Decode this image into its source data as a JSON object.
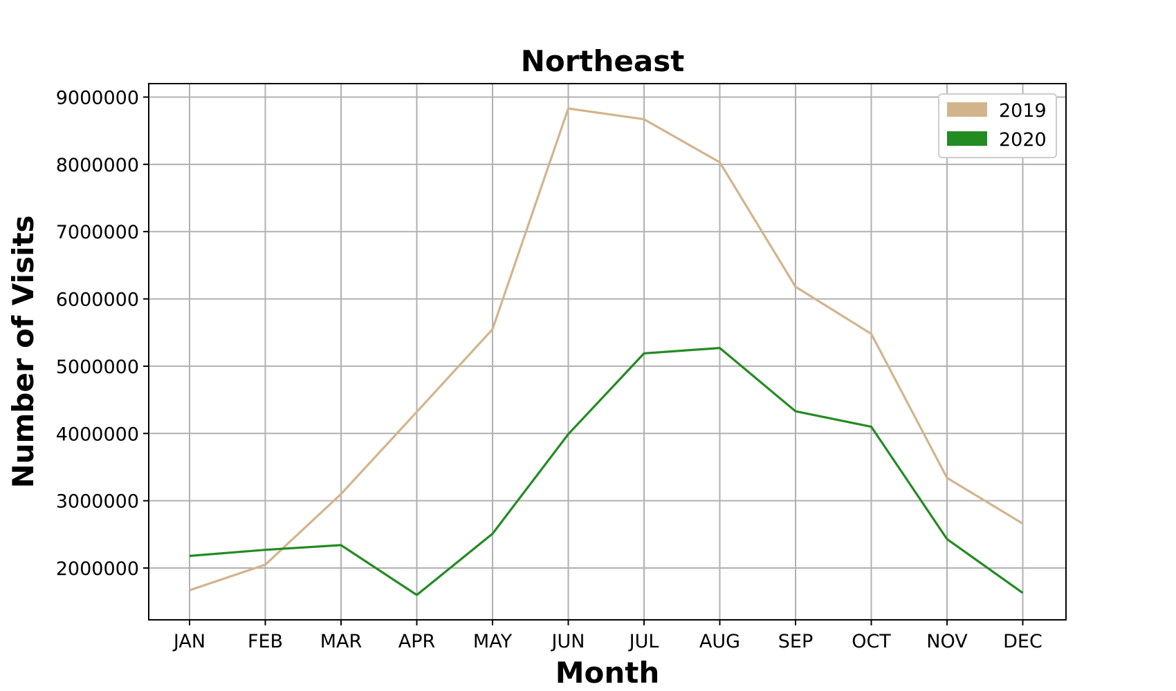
{
  "chart_data": {
    "type": "line",
    "title": "Northeast",
    "xlabel": "Month",
    "ylabel": "Number of Visits",
    "categories": [
      "JAN",
      "FEB",
      "MAR",
      "APR",
      "MAY",
      "JUN",
      "JUL",
      "AUG",
      "SEP",
      "OCT",
      "NOV",
      "DEC"
    ],
    "yticks": [
      "2000000",
      "3000000",
      "4000000",
      "5000000",
      "6000000",
      "7000000",
      "8000000",
      "9000000"
    ],
    "ylim": [
      1230000,
      9200000
    ],
    "grid": true,
    "legend_position": "top-right",
    "series": [
      {
        "name": "2019",
        "color": "#d2b48c",
        "values": [
          1670000,
          2050000,
          3100000,
          4320000,
          5550000,
          8830000,
          8670000,
          8030000,
          6180000,
          5480000,
          3340000,
          2660000
        ]
      },
      {
        "name": "2020",
        "color": "#228b22",
        "values": [
          2180000,
          2270000,
          2340000,
          1600000,
          2510000,
          3990000,
          5190000,
          5270000,
          4330000,
          4100000,
          2430000,
          1630000
        ]
      }
    ]
  }
}
